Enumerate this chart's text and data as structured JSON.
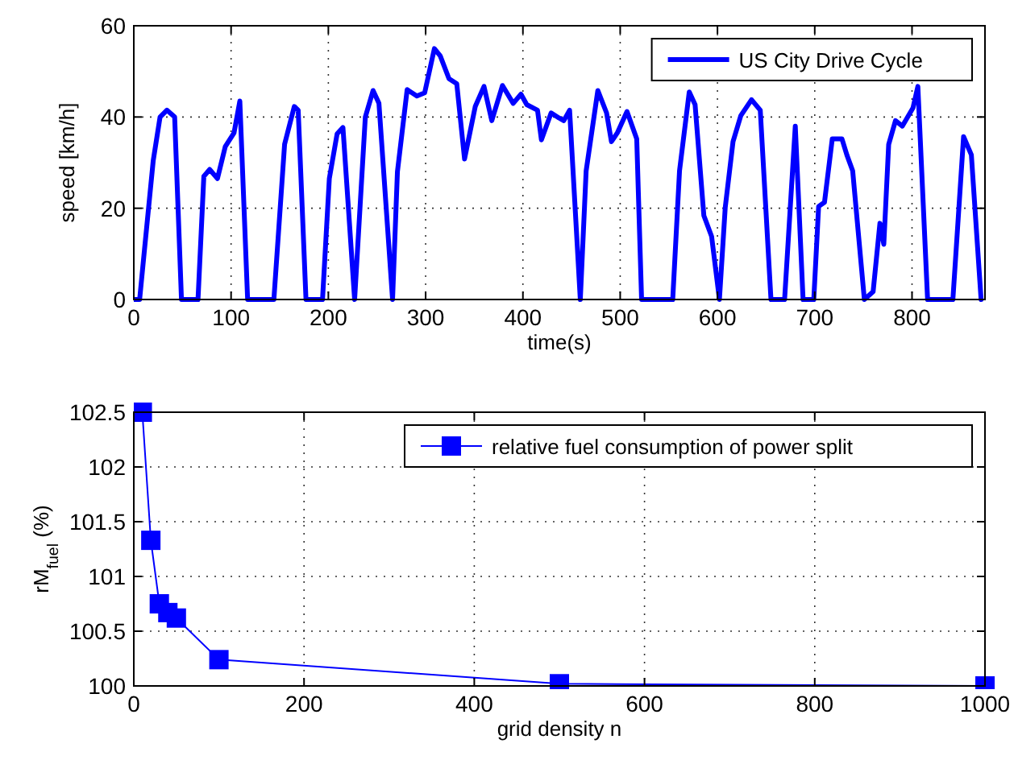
{
  "chart_data": [
    {
      "type": "line",
      "xlabel": "time(s)",
      "ylabel": "speed [km/h]",
      "xlim": [
        0,
        875
      ],
      "xticks": [
        0,
        100,
        200,
        300,
        400,
        500,
        600,
        700,
        800
      ],
      "ylim": [
        0,
        60
      ],
      "yticks": [
        0,
        20,
        40,
        60
      ],
      "grid": true,
      "legend": "top right",
      "marker": "none",
      "line_style": "solid",
      "series": [
        {
          "name": "US City Drive Cycle",
          "color": "#0000ff",
          "x": [
            0,
            6,
            11,
            20,
            27,
            34,
            42,
            49,
            66,
            72,
            78,
            86,
            94,
            103,
            109,
            117,
            144,
            155,
            165,
            169,
            177,
            194,
            201,
            209,
            215,
            227,
            238,
            246,
            252,
            266,
            271,
            281,
            291,
            299,
            309,
            315,
            324,
            332,
            340,
            351,
            360,
            368,
            379,
            390,
            398,
            404,
            415,
            419,
            429,
            437,
            442,
            448,
            459,
            465,
            477,
            486,
            491,
            497,
            507,
            517,
            522,
            554,
            561,
            571,
            577,
            586,
            594,
            602,
            608,
            616,
            624,
            635,
            644,
            655,
            669,
            680,
            688,
            699,
            704,
            710,
            718,
            728,
            733,
            739,
            751,
            760,
            767,
            771,
            776,
            783,
            790,
            801,
            806,
            816,
            842,
            853,
            861,
            871
          ],
          "values": [
            0,
            0,
            11,
            30.5,
            40,
            41.5,
            40,
            0,
            0,
            27,
            28.5,
            26.5,
            33.5,
            36.5,
            43.5,
            0,
            0,
            34,
            42.3,
            41.5,
            0,
            0,
            26.5,
            36.3,
            37.7,
            0,
            40,
            45.8,
            43,
            0,
            28,
            46,
            44.6,
            45.3,
            55,
            53.4,
            48.4,
            47.3,
            30.8,
            42.3,
            46.7,
            39.2,
            46.9,
            43,
            45,
            42.7,
            41.5,
            35,
            40.9,
            39.8,
            39.2,
            41.5,
            0,
            28.2,
            45.8,
            40.9,
            34.6,
            36.5,
            41.2,
            35.2,
            0,
            0,
            28.2,
            45.5,
            42.7,
            18.4,
            13.8,
            0,
            20.2,
            34.6,
            40.3,
            43.8,
            41.5,
            0,
            0,
            38,
            0,
            0,
            20.4,
            21.3,
            35.2,
            35.2,
            31.7,
            28.2,
            0,
            1.7,
            16.7,
            12.1,
            34,
            39.2,
            38,
            42,
            46.7,
            0,
            0,
            35.7,
            31.7,
            0
          ]
        }
      ]
    },
    {
      "type": "line",
      "xlabel": "grid density n",
      "ylabel": "rM$_{fuel}$ (%)",
      "xlim": [
        0,
        1000
      ],
      "xticks": [
        0,
        200,
        400,
        600,
        800,
        1000
      ],
      "ylim": [
        100,
        102.5
      ],
      "yticks": [
        100,
        100.5,
        101,
        101.5,
        102,
        102.5
      ],
      "grid": true,
      "legend": "top right",
      "marker": "square",
      "line_style": "solid",
      "series": [
        {
          "name": "relative fuel consumption of power split",
          "color": "#0000ff",
          "x": [
            10,
            20,
            30,
            40,
            50,
            100,
            500,
            1000
          ],
          "values": [
            102.5,
            101.33,
            100.75,
            100.67,
            100.62,
            100.24,
            100.02,
            100.0
          ]
        }
      ]
    }
  ]
}
